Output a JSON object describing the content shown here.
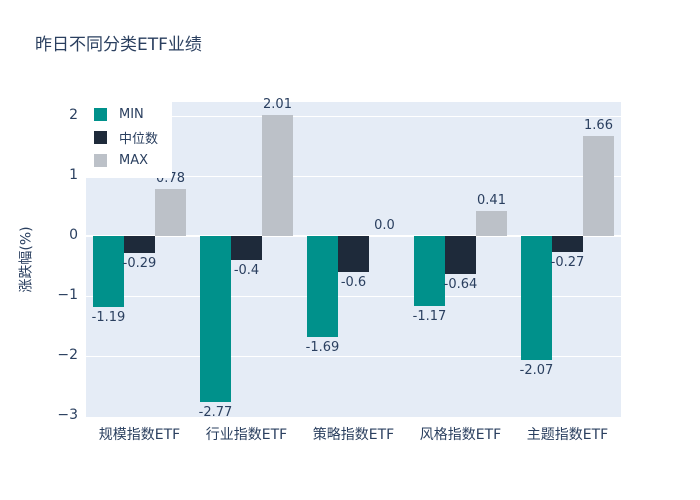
{
  "chart_data": {
    "type": "bar",
    "title": "昨日不同分类ETF业绩",
    "ylabel": "涨跌幅(%)",
    "categories": [
      "规模指数ETF",
      "行业指数ETF",
      "策略指数ETF",
      "风格指数ETF",
      "主题指数ETF"
    ],
    "series": [
      {
        "name": "MIN",
        "color": "#00918b",
        "values": [
          -1.19,
          -2.77,
          -1.69,
          -1.17,
          -2.07
        ],
        "labels": [
          "-1.19",
          "-2.77",
          "-1.69",
          "-1.17",
          "-2.07"
        ]
      },
      {
        "name": "中位数",
        "color": "#1e2a3a",
        "values": [
          -0.29,
          -0.4,
          -0.6,
          -0.64,
          -0.27
        ],
        "labels": [
          "-0.29",
          "-0.4",
          "-0.6",
          "-0.64",
          "-0.27"
        ]
      },
      {
        "name": "MAX",
        "color": "#bcc1c8",
        "values": [
          0.78,
          2.01,
          0.0,
          0.41,
          1.66
        ],
        "labels": [
          "0.78",
          "2.01",
          "0.0",
          "0.41",
          "1.66"
        ]
      }
    ],
    "yticks": [
      {
        "value": 2,
        "label": "2"
      },
      {
        "value": 1,
        "label": "1"
      },
      {
        "value": 0,
        "label": "0"
      },
      {
        "value": -1,
        "label": "−1"
      },
      {
        "value": -2,
        "label": "−2"
      },
      {
        "value": -3,
        "label": "−3"
      }
    ],
    "ylim": [
      -3.0167,
      2.2333
    ],
    "grid": true,
    "legend_position": "inside-top-left",
    "plot_bgcolor": "#e5ecf6",
    "gridcolor": "#ffffff",
    "paper_bgcolor": "#ffffff",
    "textcolor": "#2a3f5f"
  }
}
